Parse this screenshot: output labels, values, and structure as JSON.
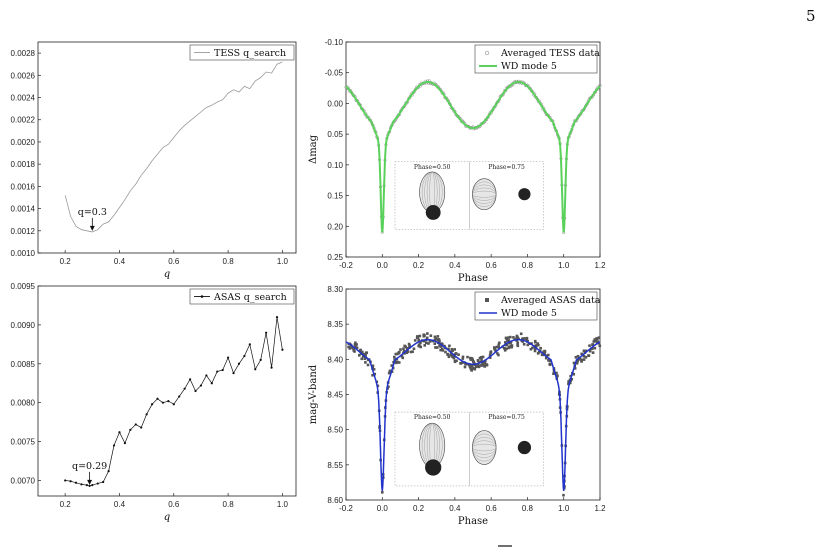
{
  "page": {
    "number": "5"
  },
  "chart_data": [
    {
      "id": "tess_qsearch",
      "type": "line",
      "xlabel": "q",
      "ylabel": "",
      "xlim": [
        0.1,
        1.05
      ],
      "ylim": [
        0.001,
        0.0029
      ],
      "xticks": [
        "0.2",
        "0.4",
        "0.6",
        "0.8",
        "1.0"
      ],
      "yticks": [
        "0.0010",
        "0.0012",
        "0.0014",
        "0.0016",
        "0.0018",
        "0.0020",
        "0.0022",
        "0.0024",
        "0.0026",
        "0.0028"
      ],
      "legend": "TESS q_search",
      "legend_position": "top-right",
      "annotation": {
        "text": "q=0.3",
        "x": 0.3,
        "y": 0.00119
      },
      "series": [
        {
          "color": "#9a9a9a",
          "x": [
            0.2,
            0.22,
            0.24,
            0.26,
            0.28,
            0.3,
            0.32,
            0.34,
            0.36,
            0.38,
            0.4,
            0.42,
            0.44,
            0.46,
            0.48,
            0.5,
            0.52,
            0.54,
            0.56,
            0.58,
            0.6,
            0.62,
            0.64,
            0.66,
            0.68,
            0.7,
            0.72,
            0.74,
            0.76,
            0.78,
            0.8,
            0.82,
            0.84,
            0.86,
            0.88,
            0.9,
            0.92,
            0.94,
            0.96,
            0.98,
            1.0
          ],
          "y": [
            0.00152,
            0.00133,
            0.00124,
            0.00121,
            0.0012,
            0.00119,
            0.00121,
            0.00126,
            0.00128,
            0.00134,
            0.00141,
            0.00148,
            0.00156,
            0.00162,
            0.0017,
            0.00176,
            0.00183,
            0.00189,
            0.00195,
            0.00198,
            0.00204,
            0.0021,
            0.00215,
            0.00219,
            0.00223,
            0.00227,
            0.00231,
            0.00233,
            0.00236,
            0.00238,
            0.00244,
            0.00247,
            0.00245,
            0.0025,
            0.00248,
            0.00255,
            0.00258,
            0.00263,
            0.00262,
            0.0027,
            0.00272
          ]
        }
      ]
    },
    {
      "id": "tess_lc",
      "type": "line",
      "xlabel": "Phase",
      "ylabel": "Δmag",
      "xlim": [
        -0.2,
        1.2
      ],
      "ylim": [
        -0.1,
        0.25
      ],
      "y_inverted": true,
      "xticks": [
        "-0.2",
        "0.0",
        "0.2",
        "0.4",
        "0.6",
        "0.8",
        "1.0",
        "1.2"
      ],
      "yticks": [
        "-0.10",
        "-0.05",
        "0.00",
        "0.05",
        "0.10",
        "0.15",
        "0.20",
        "0.25"
      ],
      "legend_position": "top-right",
      "inset_labels": [
        "Phase=0.50",
        "Phase=0.75"
      ],
      "series": [
        {
          "name": "Averaged TESS data",
          "color": "#9a9a9a",
          "marker": "circle"
        },
        {
          "name": "WD mode 5",
          "color": "#5ad15a",
          "line_width": 2
        }
      ]
    },
    {
      "id": "asas_qsearch",
      "type": "line",
      "xlabel": "q",
      "ylabel": "",
      "xlim": [
        0.1,
        1.05
      ],
      "ylim": [
        0.0068,
        0.0095
      ],
      "xticks": [
        "0.2",
        "0.4",
        "0.6",
        "0.8",
        "1.0"
      ],
      "yticks": [
        "0.0070",
        "0.0075",
        "0.0080",
        "0.0085",
        "0.0090",
        "0.0095"
      ],
      "legend": "ASAS q_search",
      "legend_position": "top-right",
      "annotation": {
        "text": "q=0.29",
        "x": 0.29,
        "y": 0.00693
      },
      "series": [
        {
          "color": "#111111",
          "marker": "dot",
          "x": [
            0.2,
            0.22,
            0.24,
            0.26,
            0.28,
            0.29,
            0.3,
            0.32,
            0.34,
            0.36,
            0.38,
            0.4,
            0.42,
            0.44,
            0.46,
            0.48,
            0.5,
            0.52,
            0.54,
            0.56,
            0.58,
            0.6,
            0.62,
            0.64,
            0.66,
            0.68,
            0.7,
            0.72,
            0.74,
            0.76,
            0.78,
            0.8,
            0.82,
            0.84,
            0.86,
            0.88,
            0.9,
            0.92,
            0.94,
            0.96,
            0.98,
            1.0
          ],
          "y": [
            0.007,
            0.00699,
            0.00697,
            0.00695,
            0.00694,
            0.00693,
            0.00694,
            0.00696,
            0.00698,
            0.00712,
            0.00745,
            0.00762,
            0.00748,
            0.00765,
            0.00772,
            0.00768,
            0.00785,
            0.00798,
            0.00805,
            0.008,
            0.00802,
            0.00798,
            0.00808,
            0.00818,
            0.0083,
            0.00815,
            0.00822,
            0.00835,
            0.00825,
            0.0084,
            0.00842,
            0.00858,
            0.00838,
            0.0085,
            0.0086,
            0.00875,
            0.00843,
            0.00855,
            0.0089,
            0.00845,
            0.0091,
            0.00868
          ]
        }
      ]
    },
    {
      "id": "asas_lc",
      "type": "scatter",
      "xlabel": "Phase",
      "ylabel": "mag-V-band",
      "xlim": [
        -0.2,
        1.2
      ],
      "ylim": [
        8.3,
        8.6
      ],
      "y_inverted": true,
      "xticks": [
        "-0.2",
        "0.0",
        "0.2",
        "0.4",
        "0.6",
        "0.8",
        "1.0",
        "1.2"
      ],
      "yticks": [
        "8.30",
        "8.35",
        "8.40",
        "8.45",
        "8.50",
        "8.55",
        "8.60"
      ],
      "legend_position": "top-right",
      "inset_labels": [
        "Phase=0.50",
        "Phase=0.75"
      ],
      "series": [
        {
          "name": "Averaged ASAS data",
          "color": "#555555",
          "marker": "square"
        },
        {
          "name": "WD mode 5",
          "color": "#2233cc",
          "line_width": 1.5
        }
      ]
    }
  ]
}
